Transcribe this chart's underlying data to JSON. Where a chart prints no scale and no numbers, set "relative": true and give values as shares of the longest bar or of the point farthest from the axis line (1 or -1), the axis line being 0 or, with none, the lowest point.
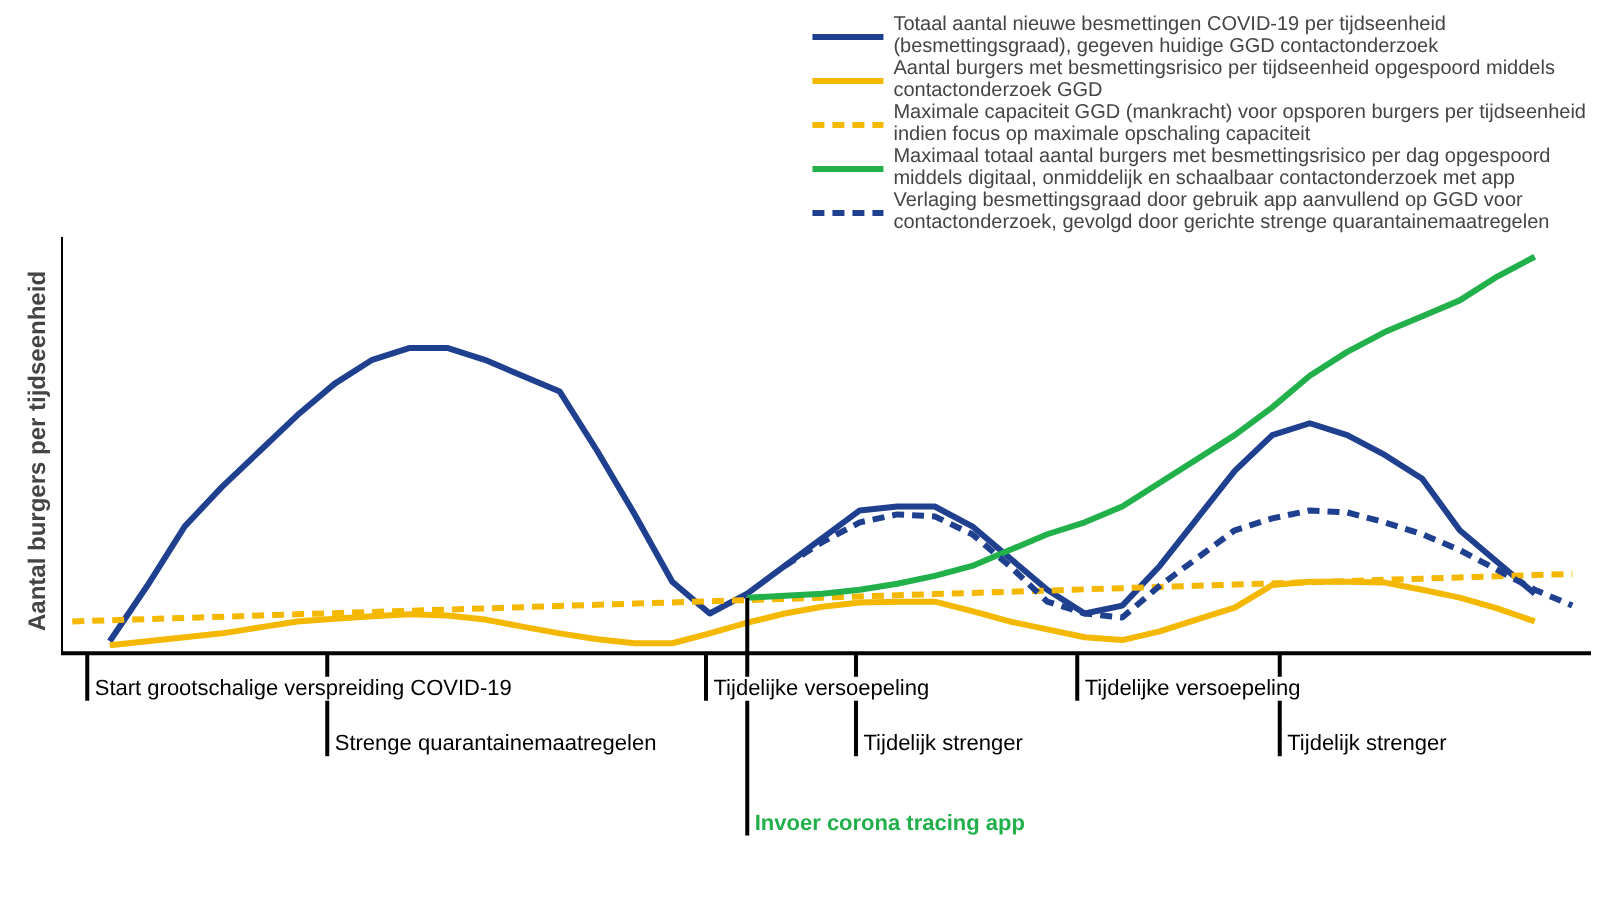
{
  "chart_data": {
    "type": "line",
    "relative": true,
    "ylabel": "Aantal burgers per tijdseenheid",
    "legend": "top right",
    "categories": [
      null,
      null,
      null,
      null,
      null,
      null,
      null,
      null,
      null,
      null,
      null,
      null,
      null,
      null,
      null,
      null,
      null,
      null,
      null,
      null,
      null,
      null,
      null,
      null,
      null,
      null,
      null,
      null,
      null,
      null,
      null,
      null,
      null,
      null,
      null,
      null,
      null,
      null,
      null,
      null,
      null
    ],
    "series": [
      {
        "name": "Totaal aantal nieuwe besmettingen COVID-19 per tijdseenheid (besmettingsgraad), gegeven huidige GGD contactonderzoek",
        "color": "#1f3f8f",
        "line_style": "solid",
        "values": [
          null,
          0.03,
          0.17,
          0.32,
          0.42,
          0.51,
          0.6,
          0.68,
          0.74,
          0.77,
          0.77,
          0.74,
          0.7,
          0.66,
          0.51,
          0.35,
          0.18,
          0.1,
          0.15,
          0.22,
          0.29,
          0.36,
          0.37,
          0.37,
          0.32,
          0.24,
          0.16,
          0.1,
          0.12,
          0.22,
          0.34,
          0.46,
          0.55,
          0.58,
          0.55,
          0.5,
          0.44,
          0.31,
          0.23,
          0.15,
          null
        ]
      },
      {
        "name": "Aantal burgers met besmettingsrisico per tijdseenheid opgespoord middels contactonderzoek GGD",
        "color": "#f5b800",
        "line_style": "solid",
        "values": [
          null,
          0.02,
          0.03,
          0.04,
          0.05,
          0.065,
          0.08,
          0.087,
          0.093,
          0.098,
          0.095,
          0.085,
          0.067,
          0.05,
          0.035,
          0.025,
          0.025,
          0.05,
          0.077,
          0.1,
          0.117,
          0.128,
          0.13,
          0.13,
          0.106,
          0.08,
          0.06,
          0.04,
          0.033,
          0.055,
          0.085,
          0.115,
          0.172,
          0.18,
          0.18,
          0.178,
          0.16,
          0.14,
          0.113,
          0.08,
          null
        ]
      },
      {
        "name": "Maximale capaciteit GGD (mankracht) voor opsporen burgers per tijdseenheid indien focus op maximale opschaling capaciteit",
        "color": "#f5b800",
        "line_style": "dashed",
        "values": [
          0.08,
          0.083,
          0.086,
          0.089,
          0.092,
          0.095,
          0.098,
          0.101,
          0.104,
          0.107,
          0.11,
          0.113,
          0.116,
          0.119,
          0.122,
          0.125,
          0.128,
          0.131,
          0.134,
          0.137,
          0.14,
          0.143,
          0.146,
          0.149,
          0.152,
          0.155,
          0.158,
          0.161,
          0.164,
          0.167,
          0.17,
          0.173,
          0.176,
          0.179,
          0.182,
          0.185,
          0.188,
          0.191,
          0.194,
          0.197,
          0.2
        ]
      },
      {
        "name": "Maximaal totaal aantal burgers met besmettingsrisico per dag opgespoord middels digitaal, onmiddelijk en schaalbaar contactonderzoek met app",
        "color": "#22b04b",
        "line_style": "solid",
        "values": [
          null,
          null,
          null,
          null,
          null,
          null,
          null,
          null,
          null,
          null,
          null,
          null,
          null,
          null,
          null,
          null,
          null,
          null,
          0.14,
          0.145,
          0.15,
          0.16,
          0.175,
          0.195,
          0.22,
          0.26,
          0.3,
          0.33,
          0.37,
          0.43,
          0.49,
          0.55,
          0.62,
          0.7,
          0.76,
          0.81,
          0.85,
          0.89,
          0.95,
          1.0,
          null
        ]
      },
      {
        "name": "Verlaging besmettingsgraad door gebruik app aanvullend op GGD voor contactonderzoek, gevolgd door gerichte strenge quarantainemaatregelen",
        "color": "#1f3f8f",
        "line_style": "dashed",
        "values": [
          null,
          null,
          null,
          null,
          null,
          null,
          null,
          null,
          null,
          null,
          null,
          null,
          null,
          null,
          null,
          null,
          null,
          null,
          null,
          0.22,
          0.28,
          0.33,
          0.35,
          0.345,
          0.3,
          0.22,
          0.13,
          0.1,
          0.09,
          0.17,
          0.24,
          0.31,
          0.34,
          0.36,
          0.355,
          0.33,
          0.3,
          0.26,
          0.21,
          0.16,
          0.12
        ]
      }
    ],
    "annotations": [
      "Start grootschalige verspreiding COVID-19",
      "Strenge quarantainemaatregelen",
      "Tijdelijke versoepeling",
      "Invoer corona tracing app",
      "Tijdelijk strenger",
      "Tijdelijke versoepeling",
      "Tijdelijk strenger"
    ]
  }
}
